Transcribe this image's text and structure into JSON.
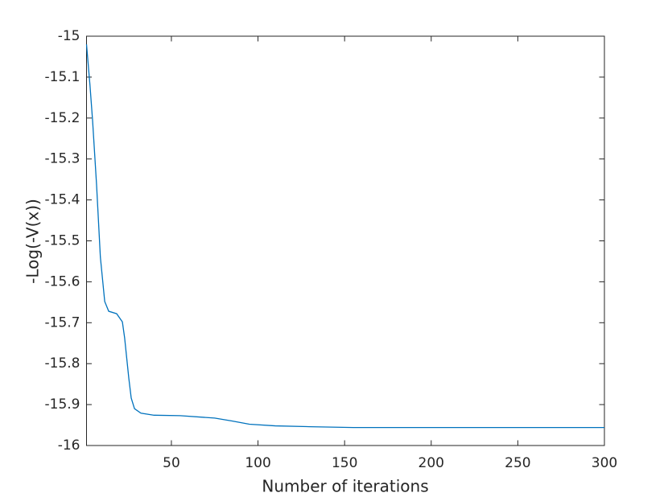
{
  "chart_data": {
    "type": "line",
    "x_label": "Number of iterations",
    "y_label": "-Log(-V(x))",
    "x": [
      1,
      3,
      4.5,
      6.8,
      9,
      11.5,
      13.8,
      18.4,
      21.7,
      23,
      25.4,
      26.8,
      28.7,
      32.4,
      40,
      55,
      75,
      85,
      95,
      110,
      130,
      155,
      300
    ],
    "values": [
      -15.02,
      -15.12,
      -15.206,
      -15.363,
      -15.54,
      -15.648,
      -15.672,
      -15.678,
      -15.698,
      -15.737,
      -15.835,
      -15.884,
      -15.91,
      -15.921,
      -15.926,
      -15.927,
      -15.933,
      -15.94,
      -15.948,
      -15.952,
      -15.954,
      -15.956,
      -15.956
    ],
    "color": "#0072bd",
    "xlim": [
      1,
      300
    ],
    "xticks": [
      50,
      100,
      150,
      200,
      250,
      300
    ],
    "ylim": [
      -16,
      -15
    ],
    "yticks": [
      -16,
      -15.9,
      -15.8,
      -15.7,
      -15.6,
      -15.5,
      -15.4,
      -15.3,
      -15.2,
      -15.1,
      -15
    ],
    "grid": false
  }
}
